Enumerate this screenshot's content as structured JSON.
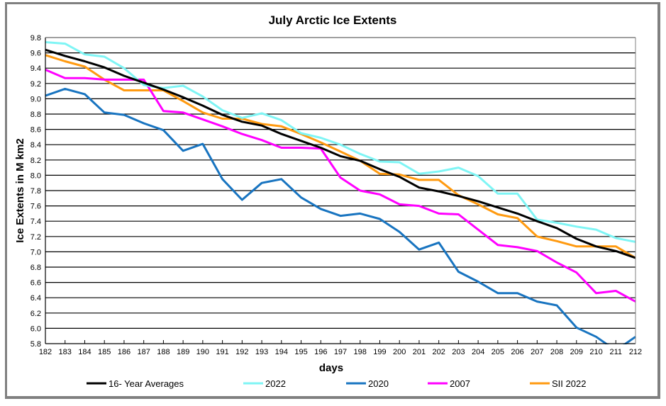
{
  "chart_data": {
    "type": "line",
    "title": "July Arctic Ice Extents",
    "xlabel": "days",
    "ylabel": "Ice Extents in M km2",
    "xlim": [
      182,
      212
    ],
    "ylim": [
      5.8,
      9.8
    ],
    "ytick_step": 0.2,
    "grid": true,
    "legend_position": "bottom",
    "x": [
      182,
      183,
      184,
      185,
      186,
      187,
      188,
      189,
      190,
      191,
      192,
      193,
      194,
      195,
      196,
      197,
      198,
      199,
      200,
      201,
      202,
      203,
      204,
      205,
      206,
      207,
      208,
      209,
      210,
      211,
      212
    ],
    "y_ticks": [
      "5.8",
      "6.0",
      "6.2",
      "6.4",
      "6.6",
      "6.8",
      "7.0",
      "7.2",
      "7.4",
      "7.6",
      "7.8",
      "8.0",
      "8.2",
      "8.4",
      "8.6",
      "8.8",
      "9.0",
      "9.2",
      "9.4",
      "9.6",
      "9.8"
    ],
    "series": [
      {
        "name": "16- Year Averages",
        "color": "#000000",
        "values": [
          9.64,
          9.56,
          9.49,
          9.41,
          9.3,
          9.21,
          9.12,
          9.02,
          8.91,
          8.79,
          8.7,
          8.65,
          8.54,
          8.45,
          8.36,
          8.25,
          8.19,
          8.08,
          7.98,
          7.84,
          7.79,
          7.73,
          7.66,
          7.58,
          7.5,
          7.4,
          7.31,
          7.17,
          7.07,
          7.01,
          6.92
        ]
      },
      {
        "name": "2022",
        "color": "#7ff5f5",
        "values": [
          9.74,
          9.72,
          9.58,
          9.55,
          9.4,
          9.18,
          9.14,
          9.17,
          9.03,
          8.85,
          8.75,
          8.81,
          8.72,
          8.55,
          8.49,
          8.4,
          8.28,
          8.18,
          8.17,
          8.02,
          8.05,
          8.1,
          7.99,
          7.76,
          7.76,
          7.42,
          7.38,
          7.33,
          7.29,
          7.18,
          7.13
        ]
      },
      {
        "name": "2020",
        "color": "#1874c0",
        "values": [
          9.04,
          9.13,
          9.06,
          8.82,
          8.79,
          8.68,
          8.59,
          8.32,
          8.41,
          7.95,
          7.68,
          7.9,
          7.95,
          7.71,
          7.56,
          7.47,
          7.5,
          7.43,
          7.26,
          7.03,
          7.12,
          6.74,
          6.61,
          6.46,
          6.46,
          6.35,
          6.3,
          6.01,
          5.89,
          5.71,
          5.89
        ]
      },
      {
        "name": "2007",
        "color": "#ff00ff",
        "values": [
          9.38,
          9.27,
          9.27,
          9.25,
          9.25,
          9.25,
          8.84,
          8.82,
          8.73,
          8.64,
          8.54,
          8.46,
          8.36,
          8.36,
          8.35,
          7.97,
          7.8,
          7.75,
          7.62,
          7.6,
          7.5,
          7.49,
          7.29,
          7.09,
          7.06,
          7.01,
          6.86,
          6.73,
          6.46,
          6.49,
          6.35
        ]
      },
      {
        "name": "SII 2022",
        "color": "#ff9a10",
        "values": [
          9.57,
          9.49,
          9.42,
          9.25,
          9.11,
          9.11,
          9.11,
          8.97,
          8.82,
          8.74,
          8.74,
          8.67,
          8.64,
          8.54,
          8.43,
          8.31,
          8.19,
          8.02,
          8.01,
          7.94,
          7.94,
          7.74,
          7.62,
          7.49,
          7.44,
          7.2,
          7.14,
          7.07,
          7.07,
          7.07,
          6.92
        ]
      }
    ]
  }
}
